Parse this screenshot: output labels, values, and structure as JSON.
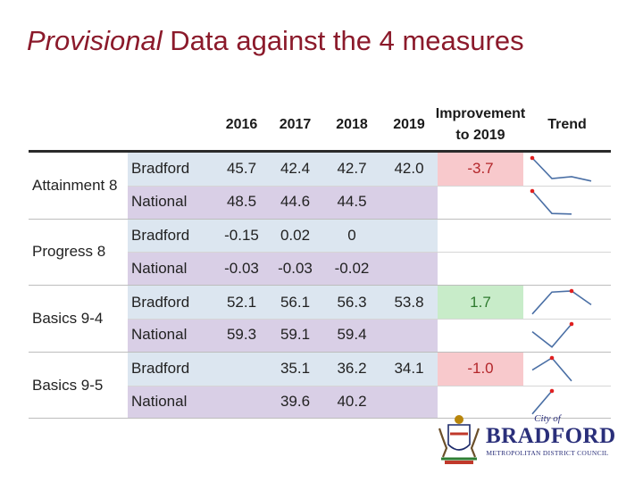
{
  "title": {
    "emphasis": "Provisional",
    "rest": " Data against the 4 measures"
  },
  "table": {
    "headers": {
      "y2016": "2016",
      "y2017": "2017",
      "y2018": "2018",
      "y2019": "2019",
      "improvement_line1": "Improvement",
      "improvement_line2": "to 2019",
      "trend": "Trend"
    },
    "groups": [
      {
        "measure": "Attainment 8",
        "rows": [
          {
            "area": "Bradford",
            "v2016": "45.7",
            "v2017": "42.4",
            "v2018": "42.7",
            "v2019": "42.0",
            "improvement": "-3.7",
            "improvement_status": "negative",
            "trend": [
              45.7,
              42.4,
              42.7,
              42.0
            ]
          },
          {
            "area": "National",
            "v2016": "48.5",
            "v2017": "44.6",
            "v2018": "44.5",
            "v2019": "",
            "improvement": "",
            "improvement_status": "none",
            "trend": [
              48.5,
              44.6,
              44.5
            ]
          }
        ]
      },
      {
        "measure": "Progress 8",
        "rows": [
          {
            "area": "Bradford",
            "v2016": "-0.15",
            "v2017": "0.02",
            "v2018": "0",
            "v2019": "",
            "improvement": "",
            "improvement_status": "none",
            "trend": []
          },
          {
            "area": "National",
            "v2016": "-0.03",
            "v2017": "-0.03",
            "v2018": "-0.02",
            "v2019": "",
            "improvement": "",
            "improvement_status": "none",
            "trend": []
          }
        ]
      },
      {
        "measure": "Basics 9-4",
        "rows": [
          {
            "area": "Bradford",
            "v2016": "52.1",
            "v2017": "56.1",
            "v2018": "56.3",
            "v2019": "53.8",
            "improvement": "1.7",
            "improvement_status": "positive",
            "trend": [
              52.1,
              56.1,
              56.3,
              53.8
            ]
          },
          {
            "area": "National",
            "v2016": "59.3",
            "v2017": "59.1",
            "v2018": "59.4",
            "v2019": "",
            "improvement": "",
            "improvement_status": "none",
            "trend": [
              59.3,
              59.1,
              59.4
            ]
          }
        ]
      },
      {
        "measure": "Basics 9-5",
        "rows": [
          {
            "area": "Bradford",
            "v2016": "",
            "v2017": "35.1",
            "v2018": "36.2",
            "v2019": "34.1",
            "improvement": "-1.0",
            "improvement_status": "negative",
            "trend": [
              35.1,
              36.2,
              34.1
            ]
          },
          {
            "area": "National",
            "v2016": "",
            "v2017": "39.6",
            "v2018": "40.2",
            "v2019": "",
            "improvement": "",
            "improvement_status": "none",
            "trend": [
              39.6,
              40.2
            ]
          }
        ]
      }
    ]
  },
  "logo": {
    "city_of": "City of",
    "name": "BRADFORD",
    "subtitle": "METROPOLITAN DISTRICT COUNCIL"
  },
  "colors": {
    "title": "#8b1a2b",
    "bradford_bg": "#dce6f0",
    "national_bg": "#d9cfe6",
    "negative_bg": "#f8c9cc",
    "positive_bg": "#c8ecc9",
    "sparkline": "#4a6fa5",
    "marker": "#e02020"
  }
}
